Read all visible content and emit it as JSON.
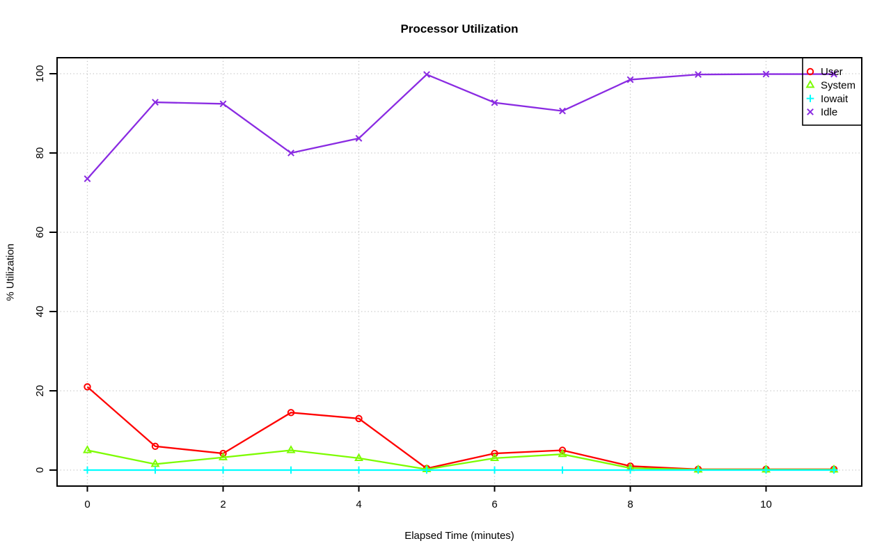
{
  "page": {
    "background_color": "#ffffff",
    "text_color": "#000000"
  },
  "chart_data": {
    "type": "line",
    "title": "Processor Utilization",
    "xlabel": "Elapsed Time (minutes)",
    "ylabel": "% Utilization",
    "x": [
      0,
      1,
      2,
      3,
      4,
      5,
      6,
      7,
      8,
      9,
      10,
      11
    ],
    "xticks": [
      0,
      2,
      4,
      6,
      8,
      10
    ],
    "yticks": [
      0,
      20,
      40,
      60,
      80,
      100
    ],
    "xlim": [
      -0.45,
      11.45
    ],
    "ylim": [
      -4,
      104
    ],
    "grid": "dotted, gray, at all x and y ticks",
    "gridline_color": "#c6c6c6",
    "axis_color": "#000000",
    "legend_position": "top-right, transparent background, black border",
    "series": [
      {
        "name": "User",
        "marker": "circle",
        "color": "#ff0000",
        "values": [
          21,
          6,
          4.2,
          14.5,
          13,
          0.4,
          4.2,
          5,
          1,
          0.2,
          0.2,
          0.2
        ]
      },
      {
        "name": "System",
        "marker": "triangle",
        "color": "#7cfc00",
        "values": [
          5,
          1.5,
          3.2,
          5,
          3,
          0.2,
          3,
          4,
          0.5,
          0.1,
          0.1,
          0.1
        ]
      },
      {
        "name": "Iowait",
        "marker": "plus",
        "color": "#00ffff",
        "values": [
          0,
          0,
          0,
          0,
          0,
          0,
          0,
          0,
          0,
          0,
          0,
          0
        ]
      },
      {
        "name": "Idle",
        "marker": "x",
        "color": "#8a2be2",
        "values": [
          73.5,
          92.8,
          92.4,
          80,
          83.7,
          99.8,
          92.7,
          90.6,
          98.5,
          99.8,
          99.9,
          99.9
        ]
      }
    ]
  }
}
